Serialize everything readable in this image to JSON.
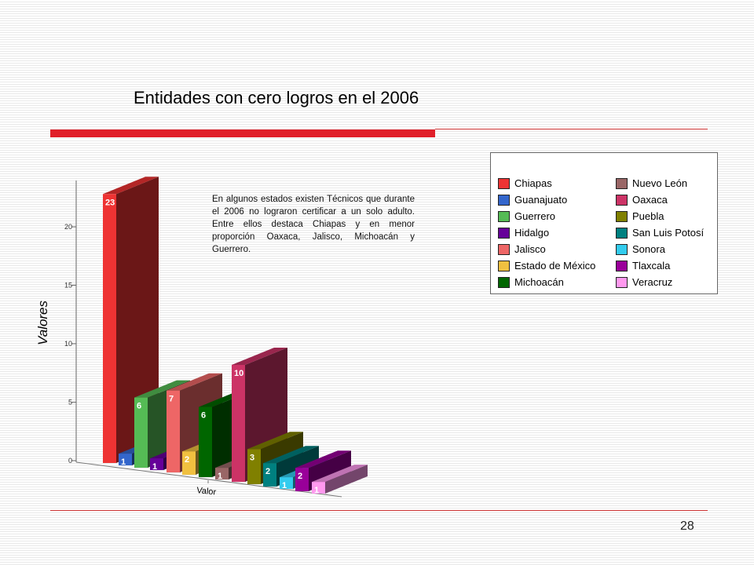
{
  "slide": {
    "title": "Entidades con cero logros en el 2006",
    "page_number": "28"
  },
  "note": "En algunos estados existen Técnicos que durante  el 2006 no lograron certificar a un solo adulto. Entre ellos destaca Chiapas y en menor proporción Oaxaca, Jalisco, Michoacán y Guerrero.",
  "chart_data": {
    "type": "bar",
    "title": "",
    "ylabel": "Valores",
    "xlabel": "Valor",
    "ylim": [
      0,
      25
    ],
    "yticks": [
      "0",
      "5",
      "10",
      "15",
      "20"
    ],
    "legend_position": "top-right",
    "series": [
      {
        "name": "Chiapas",
        "value": 23,
        "color": "#ee3333"
      },
      {
        "name": "Guanajuato",
        "value": 1,
        "color": "#3366cc"
      },
      {
        "name": "Guerrero",
        "value": 6,
        "color": "#55bb55"
      },
      {
        "name": "Hidalgo",
        "value": 1,
        "color": "#660099"
      },
      {
        "name": "Jalisco",
        "value": 7,
        "color": "#ee6666"
      },
      {
        "name": "Estado de México",
        "value": 2,
        "color": "#f0c040"
      },
      {
        "name": "Michoacán",
        "value": 6,
        "color": "#006600"
      },
      {
        "name": "Nuevo León",
        "value": 1,
        "color": "#996666"
      },
      {
        "name": "Oaxaca",
        "value": 10,
        "color": "#cc3366"
      },
      {
        "name": "Puebla",
        "value": 3,
        "color": "#808000"
      },
      {
        "name": "San Luis Potosí",
        "value": 2,
        "color": "#008080"
      },
      {
        "name": "Sonora",
        "value": 1,
        "color": "#33ccee"
      },
      {
        "name": "Tlaxcala",
        "value": 2,
        "color": "#990099"
      },
      {
        "name": "Veracruz",
        "value": 1,
        "color": "#ff99ee"
      }
    ]
  }
}
